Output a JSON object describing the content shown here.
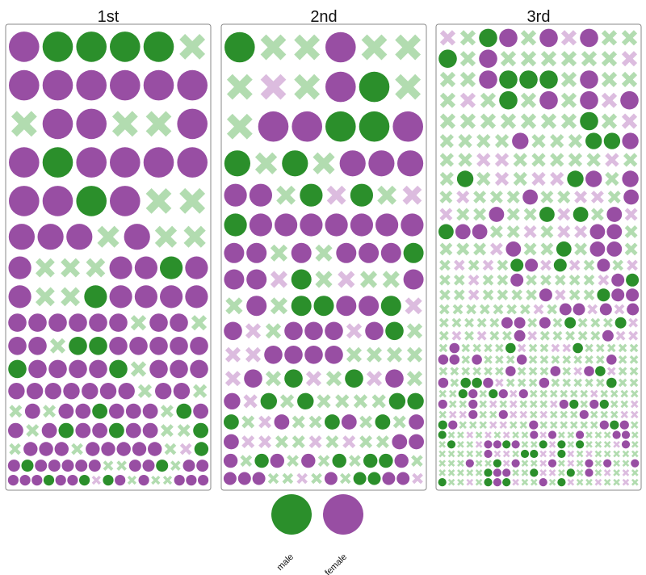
{
  "chart_data": {
    "type": "scatter",
    "subtype": "packed-glyph grid (circle = survived, cross = did not survive, size = fare)",
    "panels": [
      {
        "name": "1st",
        "columns": 7,
        "row_counts": [
          6,
          6,
          6,
          6,
          6,
          7,
          8,
          8,
          10,
          10,
          10,
          11,
          12,
          12,
          13,
          15,
          17
        ],
        "sample": [
          {
            "sex": "male",
            "survived": true,
            "fare": 211.3
          },
          {
            "sex": "female",
            "survived": true,
            "fare": 211.3
          },
          {
            "sex": "female",
            "survived": true,
            "fare": 151.6
          },
          {
            "sex": "female",
            "survived": true,
            "fare": 151.6
          },
          {
            "sex": "female",
            "survived": true,
            "fare": 151.6
          },
          {
            "sex": "male",
            "survived": true,
            "fare": 151.6
          },
          {
            "sex": "female",
            "survived": true,
            "fare": 120.0
          },
          {
            "sex": "male",
            "survived": false,
            "fare": 120.0
          },
          {
            "sex": "female",
            "survived": true,
            "fare": 110.9
          },
          {
            "sex": "male",
            "survived": false,
            "fare": 110.9
          },
          {
            "sex": "female",
            "survived": false,
            "fare": 110.9
          },
          {
            "sex": "male",
            "survived": true,
            "fare": 110.9
          }
        ]
      },
      {
        "name": "2nd",
        "columns": 7,
        "row_counts": [
          6,
          6,
          6,
          7,
          8,
          8,
          9,
          9,
          9,
          10,
          10,
          10,
          11,
          12,
          12,
          13,
          14
        ],
        "sample": [
          {
            "sex": "male",
            "survived": false,
            "fare": 73.5
          },
          {
            "sex": "female",
            "survived": true,
            "fare": 73.5
          },
          {
            "sex": "female",
            "survived": true,
            "fare": 65.0
          },
          {
            "sex": "female",
            "survived": true,
            "fare": 65.0
          },
          {
            "sex": "male",
            "survived": false,
            "fare": 65.0
          },
          {
            "sex": "male",
            "survived": true,
            "fare": 39.0
          },
          {
            "sex": "female",
            "survived": true,
            "fare": 39.0
          },
          {
            "sex": "male",
            "survived": true,
            "fare": 39.0
          }
        ]
      },
      {
        "name": "3rd",
        "columns": 9,
        "row_counts": [
          10,
          10,
          10,
          10,
          10,
          11,
          11,
          11,
          12,
          12,
          12,
          12,
          14,
          14,
          14,
          15,
          16,
          16,
          18,
          18,
          18,
          18,
          20,
          20,
          20,
          20,
          22,
          22,
          22,
          22,
          22,
          22
        ],
        "sample": [
          {
            "sex": "female",
            "survived": false,
            "fare": 69.6
          },
          {
            "sex": "male",
            "survived": false,
            "fare": 69.6
          },
          {
            "sex": "female",
            "survived": false,
            "fare": 69.6
          },
          {
            "sex": "male",
            "survived": true,
            "fare": 56.5
          },
          {
            "sex": "male",
            "survived": false,
            "fare": 56.5
          },
          {
            "sex": "female",
            "survived": false,
            "fare": 46.9
          }
        ]
      }
    ],
    "legend": {
      "placement": "bottom-center",
      "entries": [
        "male",
        "female"
      ]
    },
    "colors": {
      "male": "#2b8f2b",
      "female": "#984ea3",
      "male_cross": "#b2dcb0",
      "female_cross": "#dcbcdf",
      "panel_border": "#888888"
    }
  }
}
